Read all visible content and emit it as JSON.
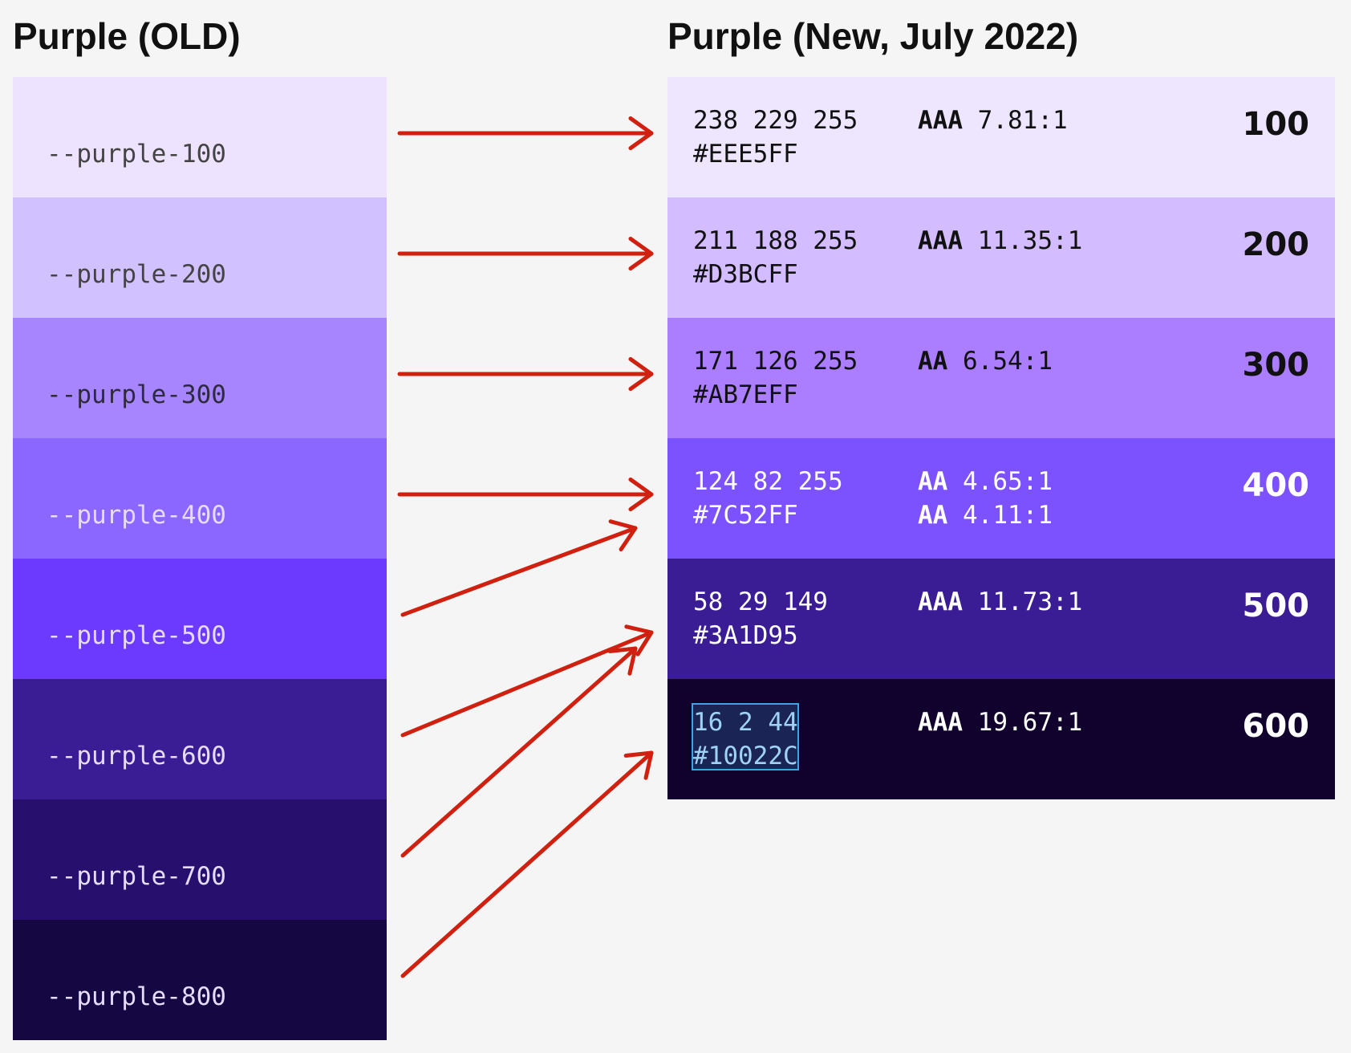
{
  "titles": {
    "old": "Purple (OLD)",
    "new": "Purple (New, July 2022)"
  },
  "old_palette": [
    {
      "token": "--purple-100",
      "color": "#EDE3FF",
      "text_color": "#444444"
    },
    {
      "token": "--purple-200",
      "color": "#D1C2FF",
      "text_color": "#444444"
    },
    {
      "token": "--purple-300",
      "color": "#A685FF",
      "text_color": "#2e2a40"
    },
    {
      "token": "--purple-400",
      "color": "#8B66FF",
      "text_color": "#e6dcff"
    },
    {
      "token": "--purple-500",
      "color": "#6C3AFF",
      "text_color": "#e6dcff"
    },
    {
      "token": "--purple-600",
      "color": "#3A1D94",
      "text_color": "#e6dcff"
    },
    {
      "token": "--purple-700",
      "color": "#270F6E",
      "text_color": "#e6dcff"
    },
    {
      "token": "--purple-800",
      "color": "#140742",
      "text_color": "#e6dcff"
    }
  ],
  "new_palette": [
    {
      "rgb": "238 229 255",
      "hex": "#EEE5FF",
      "ratings": [
        {
          "level": "AAA",
          "ratio": "7.81:1"
        }
      ],
      "scale": "100",
      "color": "#EEE5FF",
      "text_color": "#111111"
    },
    {
      "rgb": "211 188 255",
      "hex": "#D3BCFF",
      "ratings": [
        {
          "level": "AAA",
          "ratio": "11.35:1"
        }
      ],
      "scale": "200",
      "color": "#D3BCFF",
      "text_color": "#111111"
    },
    {
      "rgb": "171 126 255",
      "hex": "#AB7EFF",
      "ratings": [
        {
          "level": "AA",
          "ratio": "6.54:1"
        }
      ],
      "scale": "300",
      "color": "#AB7EFF",
      "text_color": "#111111"
    },
    {
      "rgb": "124 82 255",
      "hex": "#7C52FF",
      "ratings": [
        {
          "level": "AA",
          "ratio": "4.65:1"
        },
        {
          "level": "AA",
          "ratio": "4.11:1"
        }
      ],
      "scale": "400",
      "color": "#7C52FF",
      "text_color": "#ffffff"
    },
    {
      "rgb": "58 29 149",
      "hex": "#3A1D95",
      "ratings": [
        {
          "level": "AAA",
          "ratio": "11.73:1"
        }
      ],
      "scale": "500",
      "color": "#3A1D95",
      "text_color": "#ffffff"
    },
    {
      "rgb": "16 2 44",
      "hex": "#10022C",
      "ratings": [
        {
          "level": "AAA",
          "ratio": "19.67:1"
        }
      ],
      "scale": "600",
      "color": "#10022C",
      "text_color": "#ffffff"
    }
  ],
  "mapping": [
    {
      "from": "--purple-100",
      "to": "100"
    },
    {
      "from": "--purple-200",
      "to": "200"
    },
    {
      "from": "--purple-300",
      "to": "300"
    },
    {
      "from": "--purple-400",
      "to": "400"
    },
    {
      "from": "--purple-500",
      "to": "400"
    },
    {
      "from": "--purple-600",
      "to": "500"
    },
    {
      "from": "--purple-700",
      "to": "500"
    },
    {
      "from": "--purple-800",
      "to": "600"
    }
  ],
  "selection": {
    "scale": "600"
  },
  "arrow_color": "#D0200F"
}
